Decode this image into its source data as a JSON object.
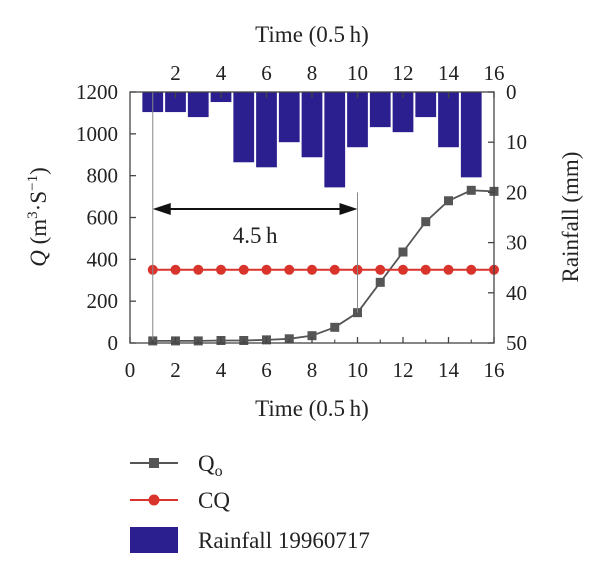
{
  "chart_data": {
    "type": "line",
    "top_xlabel": "Time (0.5 h)",
    "xlabel": "Time (0.5 h)",
    "ylabel_left": {
      "italic": "Q",
      "text": " (m",
      "sup1": "3",
      "mid": "·S",
      "sup2": "−1",
      "end": ")"
    },
    "ylabel_right": "Rainfall (mm)",
    "annotation": "4.5 h",
    "bottom_xticks": [
      0,
      2,
      4,
      6,
      8,
      10,
      12,
      14,
      16
    ],
    "top_xticks": [
      2,
      4,
      6,
      8,
      10,
      12,
      14,
      16
    ],
    "left_yticks": [
      0,
      200,
      400,
      600,
      800,
      1000,
      1200
    ],
    "right_yticks": [
      0,
      10,
      20,
      30,
      40,
      50
    ],
    "xlim": [
      0,
      16
    ],
    "ylim_left": [
      0,
      1200
    ],
    "ylim_right_inverted": [
      0,
      50
    ],
    "rainfall": {
      "name": "Rainfall 19960717",
      "color": "#2b1f8f",
      "x": [
        1,
        2,
        3,
        4,
        5,
        6,
        7,
        8,
        9,
        10,
        11,
        12,
        13,
        14,
        15,
        16
      ],
      "values": [
        4,
        4,
        5,
        2,
        14,
        15,
        10,
        13,
        19,
        11,
        7,
        8,
        5,
        11,
        17,
        0
      ]
    },
    "series": [
      {
        "name": "Q",
        "name_sub": "o",
        "color": "#555555",
        "marker": "square",
        "x": [
          1,
          2,
          3,
          4,
          5,
          6,
          7,
          8,
          9,
          10,
          11,
          12,
          13,
          14,
          15,
          16
        ],
        "values": [
          10,
          10,
          10,
          12,
          12,
          15,
          20,
          35,
          75,
          145,
          290,
          435,
          580,
          680,
          730,
          725
        ]
      },
      {
        "name": "CQ",
        "color": "#d9342b",
        "marker": "circle",
        "x": [
          1,
          2,
          3,
          4,
          5,
          6,
          7,
          8,
          9,
          10,
          11,
          12,
          13,
          14,
          15,
          16
        ],
        "values": [
          350,
          350,
          350,
          350,
          350,
          350,
          350,
          350,
          350,
          350,
          350,
          350,
          350,
          350,
          350,
          350
        ]
      }
    ]
  }
}
